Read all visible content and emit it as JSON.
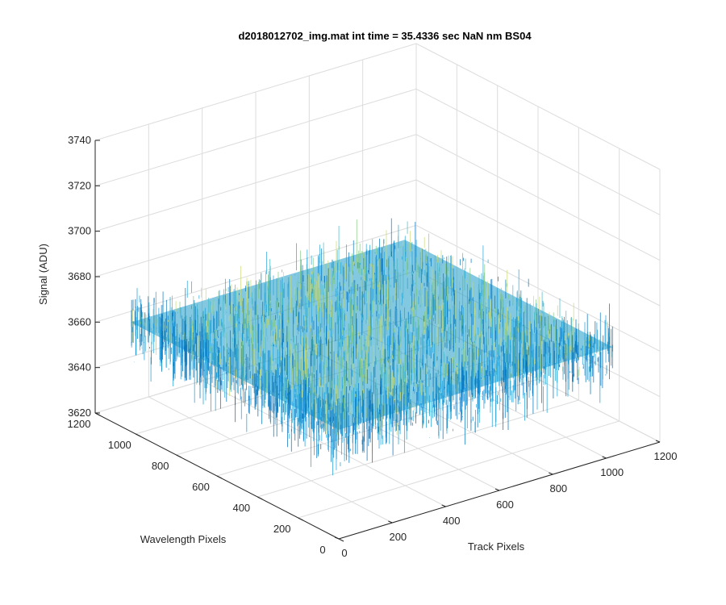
{
  "chart_data": {
    "type": "surface3d",
    "title": "d2018012702_img.mat int time = 35.4336 sec  NaN nm BS04",
    "xlabel": "Track Pixels",
    "ylabel": "Wavelength Pixels",
    "zlabel": "Signal (ADU)",
    "xlim": [
      0,
      1200
    ],
    "ylim": [
      0,
      1200
    ],
    "zlim": [
      3620,
      3740
    ],
    "x_ticks": [
      "0",
      "200",
      "400",
      "600",
      "800",
      "1000",
      "1200"
    ],
    "y_ticks": [
      "0",
      "200",
      "400",
      "600",
      "800",
      "1000",
      "1200"
    ],
    "z_ticks": [
      "3620",
      "3640",
      "3660",
      "3680",
      "3700",
      "3720",
      "3740"
    ],
    "surface": {
      "x_extent": [
        0,
        1024
      ],
      "y_extent": [
        0,
        1024
      ],
      "mean_signal": 3668,
      "noise_range": [
        3630,
        3720
      ],
      "colormap": [
        "#0072bd",
        "#1ea0d8",
        "#41b6c4",
        "#7fc97f",
        "#c7d96e"
      ]
    },
    "grid": true
  }
}
